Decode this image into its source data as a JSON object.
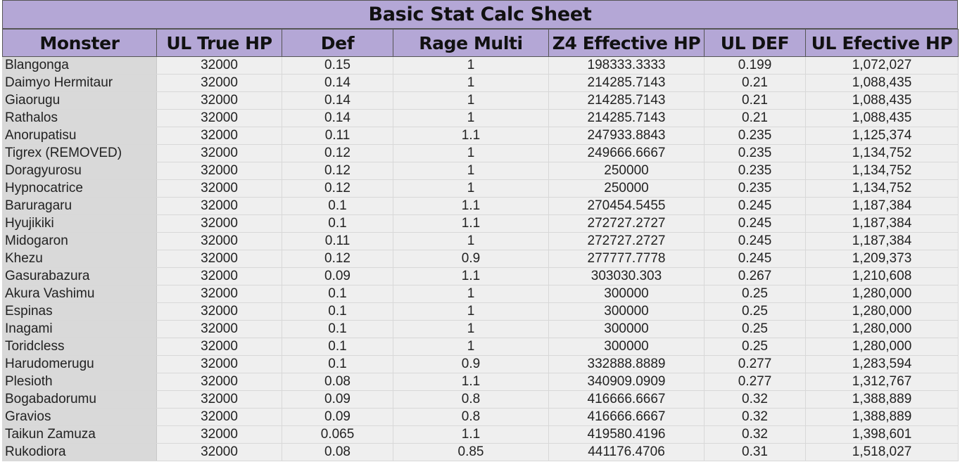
{
  "sheet": {
    "title": "Basic Stat Calc Sheet",
    "headers": [
      "Monster",
      "UL True HP",
      "Def",
      "Rage Multi",
      "Z4 Effective HP",
      "UL DEF",
      "UL Efective HP"
    ],
    "rows": [
      [
        "Blangonga",
        "32000",
        "0.15",
        "1",
        "198333.3333",
        "0.199",
        "1,072,027"
      ],
      [
        "Daimyo Hermitaur",
        "32000",
        "0.14",
        "1",
        "214285.7143",
        "0.21",
        "1,088,435"
      ],
      [
        "Giaorugu",
        "32000",
        "0.14",
        "1",
        "214285.7143",
        "0.21",
        "1,088,435"
      ],
      [
        "Rathalos",
        "32000",
        "0.14",
        "1",
        "214285.7143",
        "0.21",
        "1,088,435"
      ],
      [
        "Anorupatisu",
        "32000",
        "0.11",
        "1.1",
        "247933.8843",
        "0.235",
        "1,125,374"
      ],
      [
        "Tigrex (REMOVED)",
        "32000",
        "0.12",
        "1",
        "249666.6667",
        "0.235",
        "1,134,752"
      ],
      [
        "Doragyurosu",
        "32000",
        "0.12",
        "1",
        "250000",
        "0.235",
        "1,134,752"
      ],
      [
        "Hypnocatrice",
        "32000",
        "0.12",
        "1",
        "250000",
        "0.235",
        "1,134,752"
      ],
      [
        "Baruragaru",
        "32000",
        "0.1",
        "1.1",
        "270454.5455",
        "0.245",
        "1,187,384"
      ],
      [
        "Hyujikiki",
        "32000",
        "0.1",
        "1.1",
        "272727.2727",
        "0.245",
        "1,187,384"
      ],
      [
        "Midogaron",
        "32000",
        "0.11",
        "1",
        "272727.2727",
        "0.245",
        "1,187,384"
      ],
      [
        "Khezu",
        "32000",
        "0.12",
        "0.9",
        "277777.7778",
        "0.245",
        "1,209,373"
      ],
      [
        "Gasurabazura",
        "32000",
        "0.09",
        "1.1",
        "303030.303",
        "0.267",
        "1,210,608"
      ],
      [
        "Akura Vashimu",
        "32000",
        "0.1",
        "1",
        "300000",
        "0.25",
        "1,280,000"
      ],
      [
        "Espinas",
        "32000",
        "0.1",
        "1",
        "300000",
        "0.25",
        "1,280,000"
      ],
      [
        "Inagami",
        "32000",
        "0.1",
        "1",
        "300000",
        "0.25",
        "1,280,000"
      ],
      [
        "Toridcless",
        "32000",
        "0.1",
        "1",
        "300000",
        "0.25",
        "1,280,000"
      ],
      [
        "Harudomerugu",
        "32000",
        "0.1",
        "0.9",
        "332888.8889",
        "0.277",
        "1,283,594"
      ],
      [
        "Plesioth",
        "32000",
        "0.08",
        "1.1",
        "340909.0909",
        "0.277",
        "1,312,767"
      ],
      [
        "Bogabadorumu",
        "32000",
        "0.09",
        "0.8",
        "416666.6667",
        "0.32",
        "1,388,889"
      ],
      [
        "Gravios",
        "32000",
        "0.09",
        "0.8",
        "416666.6667",
        "0.32",
        "1,388,889"
      ],
      [
        "Taikun Zamuza",
        "32000",
        "0.065",
        "1.1",
        "419580.4196",
        "0.32",
        "1,398,601"
      ],
      [
        "Rukodiora",
        "32000",
        "0.08",
        "0.85",
        "441176.4706",
        "0.31",
        "1,518,027"
      ]
    ]
  },
  "colors": {
    "header_bg": "#b4a7d6",
    "name_column_bg": "#d9d9d9",
    "cell_bg": "#efefef"
  }
}
